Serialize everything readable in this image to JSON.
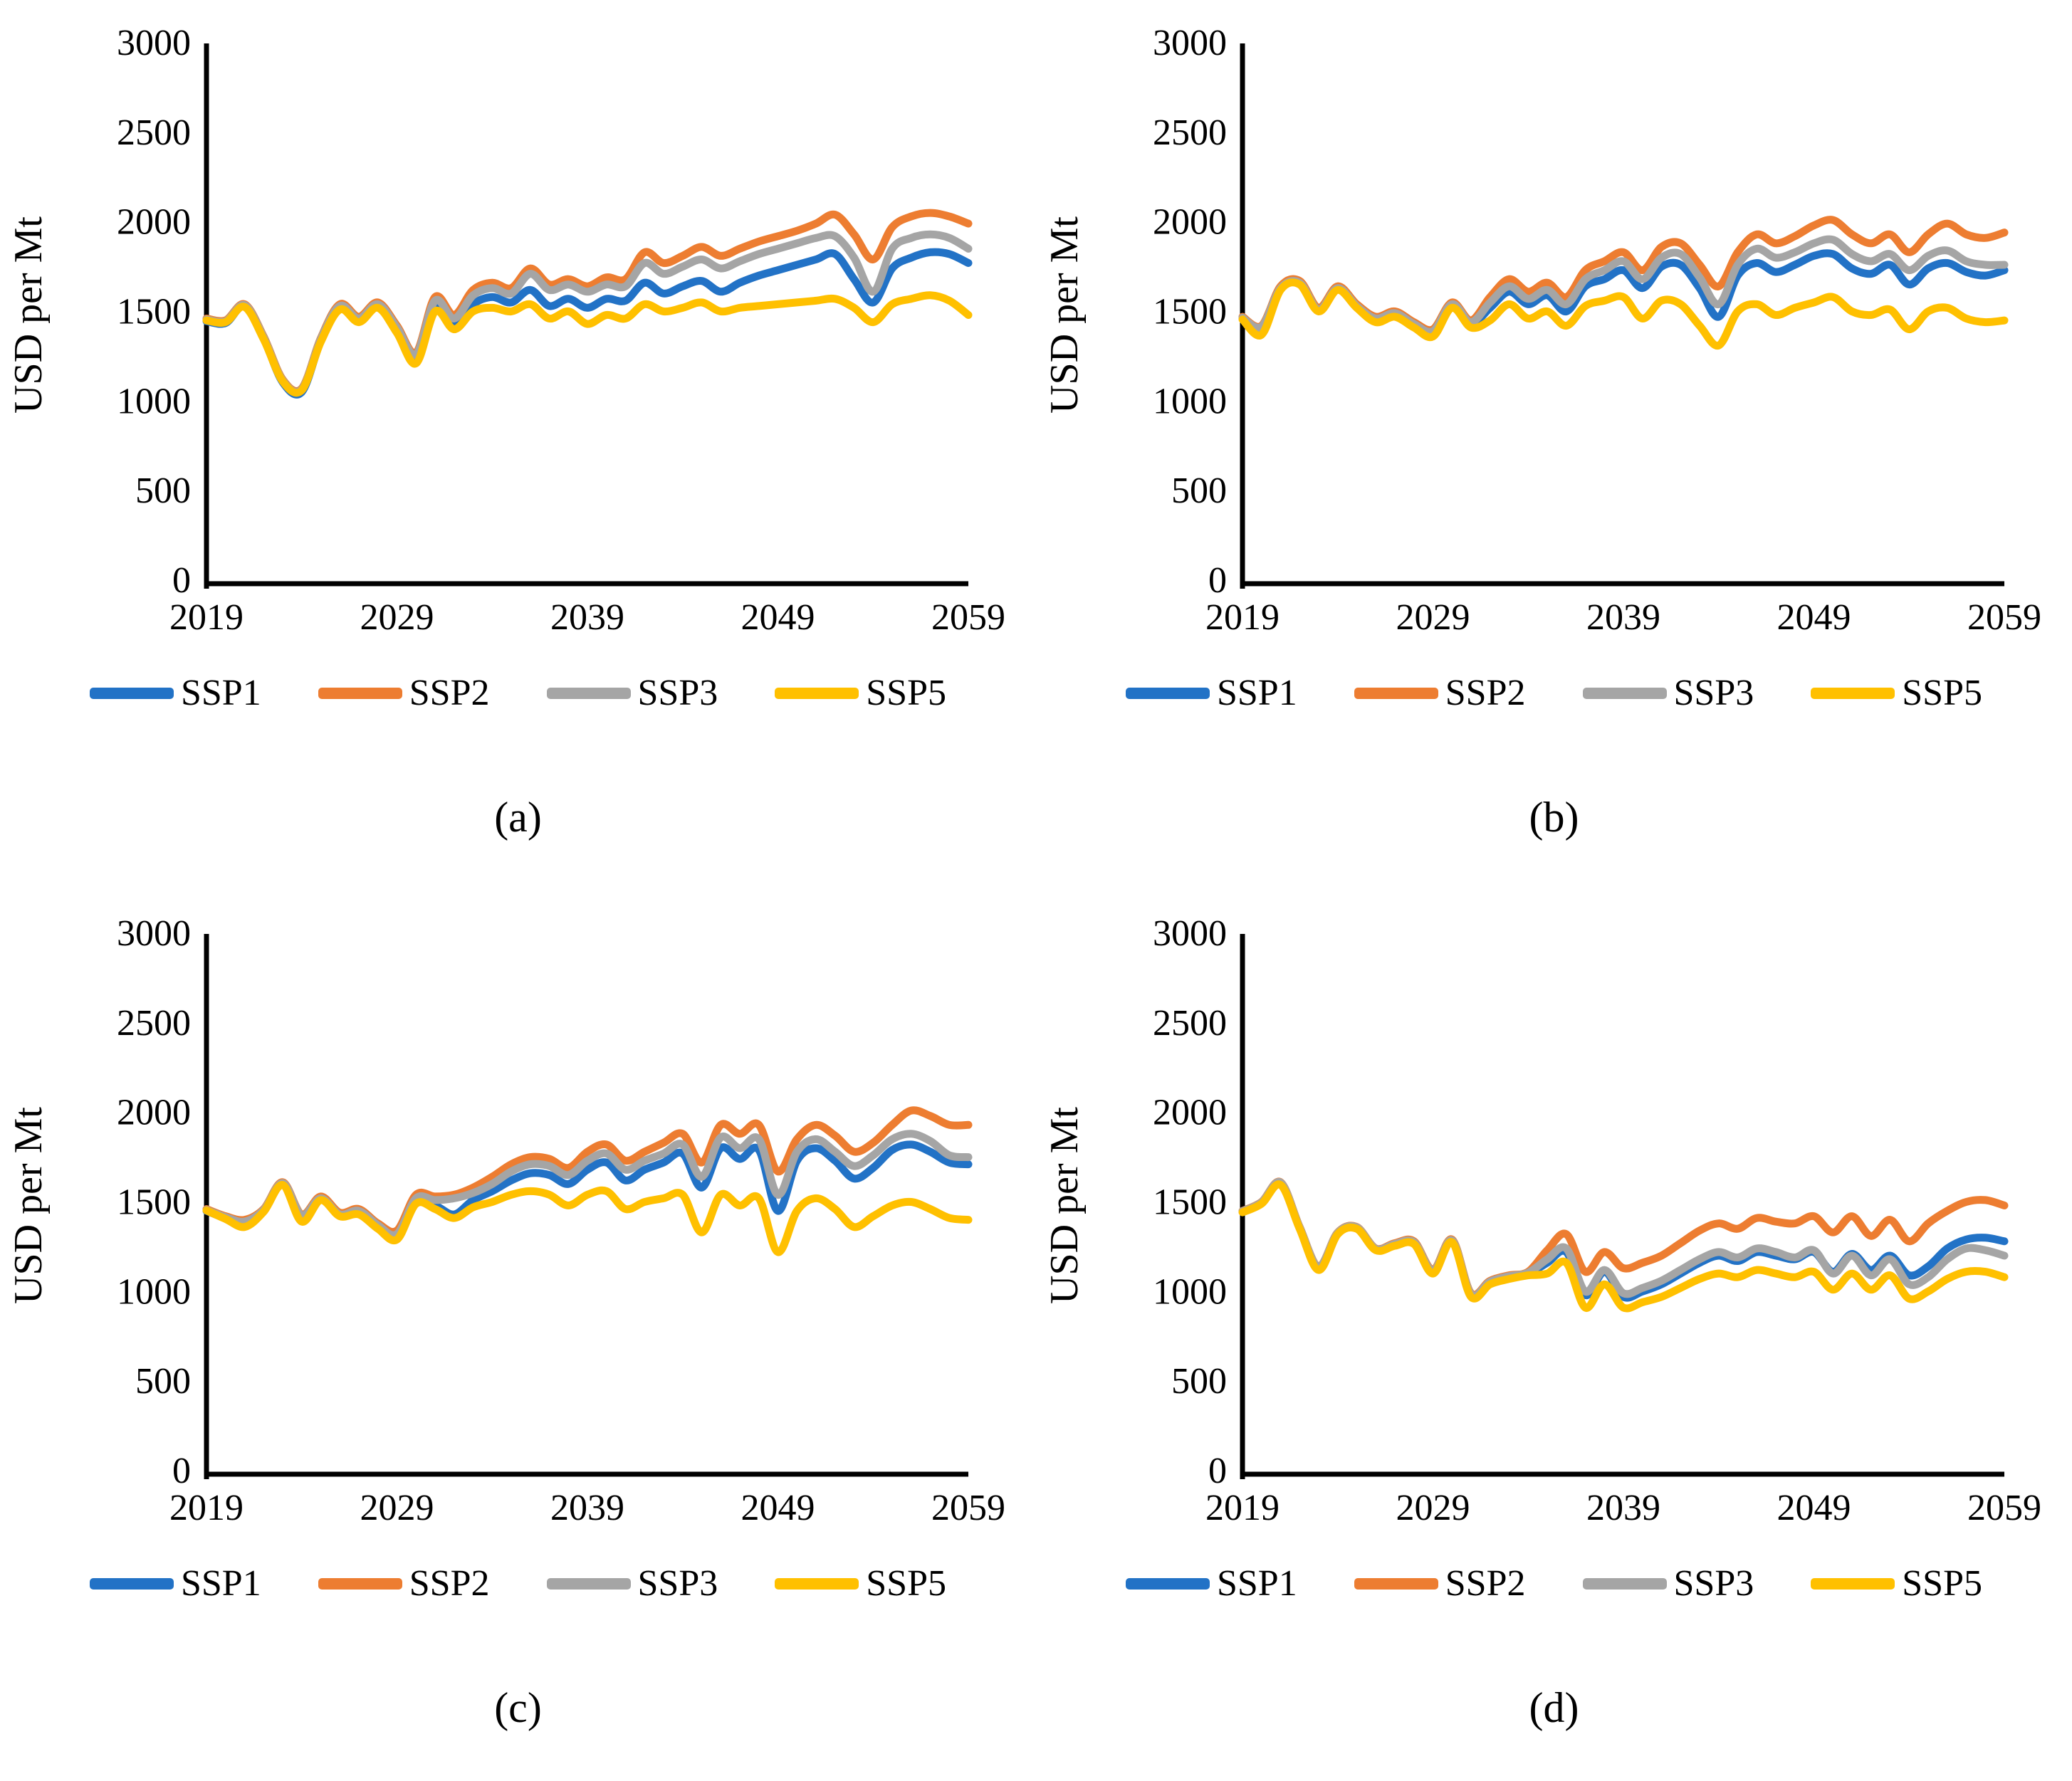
{
  "page": {
    "background": "#ffffff"
  },
  "figure": {
    "ylabel": "USD per Mt",
    "colors": {
      "SSP1": "#2272C6",
      "SSP2": "#ED7D31",
      "SSP3": "#A5A5A5",
      "SSP5": "#FFC000",
      "axis": "#000000"
    }
  },
  "chart_data": [
    {
      "id": "a",
      "panel_label": "(a)",
      "type": "line",
      "title": "",
      "xlabel": "",
      "ylabel": "USD per Mt",
      "ylim": [
        0,
        3000
      ],
      "x_start": 2019,
      "x_end": 2059,
      "x_step": 1,
      "x_ticks": [
        2019,
        2029,
        2039,
        2049,
        2059
      ],
      "y_ticks": [
        0,
        500,
        1000,
        1500,
        2000,
        2500,
        3000
      ],
      "grid": false,
      "legend_position": "bottom",
      "series": [
        {
          "name": "SSP1",
          "color": "#2272C6",
          "values": [
            1465,
            1455,
            1550,
            1370,
            1125,
            1070,
            1355,
            1540,
            1470,
            1550,
            1420,
            1250,
            1550,
            1440,
            1560,
            1600,
            1570,
            1640,
            1550,
            1590,
            1540,
            1590,
            1580,
            1680,
            1620,
            1660,
            1690,
            1630,
            1680,
            1720,
            1750,
            1780,
            1810,
            1840,
            1700,
            1570,
            1760,
            1820,
            1850,
            1840,
            1790
          ]
        },
        {
          "name": "SSP2",
          "color": "#ED7D31",
          "values": [
            1480,
            1470,
            1560,
            1380,
            1140,
            1090,
            1370,
            1560,
            1490,
            1570,
            1440,
            1290,
            1600,
            1500,
            1640,
            1680,
            1650,
            1760,
            1670,
            1700,
            1660,
            1710,
            1700,
            1850,
            1790,
            1830,
            1880,
            1830,
            1870,
            1910,
            1940,
            1970,
            2010,
            2060,
            1950,
            1810,
            1990,
            2050,
            2070,
            2050,
            2010
          ]
        },
        {
          "name": "SSP3",
          "color": "#A5A5A5",
          "values": [
            1475,
            1465,
            1555,
            1375,
            1135,
            1085,
            1365,
            1550,
            1480,
            1560,
            1430,
            1280,
            1580,
            1480,
            1610,
            1650,
            1620,
            1730,
            1640,
            1670,
            1630,
            1670,
            1660,
            1790,
            1730,
            1770,
            1810,
            1760,
            1800,
            1840,
            1870,
            1900,
            1930,
            1940,
            1820,
            1630,
            1870,
            1930,
            1950,
            1930,
            1870
          ]
        },
        {
          "name": "SSP5",
          "color": "#FFC000",
          "values": [
            1470,
            1460,
            1545,
            1365,
            1130,
            1080,
            1350,
            1530,
            1460,
            1540,
            1400,
            1230,
            1520,
            1420,
            1520,
            1540,
            1520,
            1560,
            1480,
            1520,
            1450,
            1500,
            1480,
            1560,
            1520,
            1540,
            1570,
            1520,
            1540,
            1550,
            1560,
            1570,
            1580,
            1590,
            1540,
            1460,
            1560,
            1590,
            1610,
            1580,
            1500
          ]
        }
      ]
    },
    {
      "id": "b",
      "panel_label": "(b)",
      "type": "line",
      "title": "",
      "xlabel": "",
      "ylabel": "USD per Mt",
      "ylim": [
        0,
        3000
      ],
      "x_start": 2019,
      "x_end": 2059,
      "x_step": 1,
      "x_ticks": [
        2019,
        2029,
        2039,
        2049,
        2059
      ],
      "y_ticks": [
        0,
        500,
        1000,
        1500,
        2000,
        2500,
        3000
      ],
      "grid": false,
      "legend_position": "bottom",
      "series": [
        {
          "name": "SSP1",
          "color": "#2272C6",
          "values": [
            1480,
            1430,
            1645,
            1675,
            1525,
            1645,
            1545,
            1470,
            1500,
            1440,
            1400,
            1550,
            1450,
            1540,
            1630,
            1560,
            1610,
            1520,
            1660,
            1700,
            1750,
            1650,
            1770,
            1780,
            1650,
            1490,
            1720,
            1790,
            1740,
            1780,
            1830,
            1840,
            1760,
            1730,
            1780,
            1670,
            1760,
            1790,
            1740,
            1720,
            1750
          ]
        },
        {
          "name": "SSP2",
          "color": "#ED7D31",
          "values": [
            1490,
            1440,
            1660,
            1690,
            1540,
            1660,
            1560,
            1490,
            1520,
            1460,
            1420,
            1570,
            1470,
            1600,
            1700,
            1630,
            1680,
            1600,
            1750,
            1800,
            1850,
            1750,
            1880,
            1900,
            1780,
            1660,
            1850,
            1950,
            1900,
            1940,
            2000,
            2030,
            1950,
            1900,
            1950,
            1850,
            1950,
            2010,
            1950,
            1930,
            1960
          ]
        },
        {
          "name": "SSP3",
          "color": "#A5A5A5",
          "values": [
            1485,
            1435,
            1650,
            1680,
            1530,
            1650,
            1550,
            1480,
            1510,
            1450,
            1410,
            1560,
            1460,
            1570,
            1660,
            1590,
            1640,
            1560,
            1700,
            1750,
            1800,
            1700,
            1820,
            1840,
            1710,
            1560,
            1780,
            1870,
            1820,
            1850,
            1900,
            1920,
            1840,
            1800,
            1840,
            1750,
            1830,
            1860,
            1800,
            1780,
            1780
          ]
        },
        {
          "name": "SSP5",
          "color": "#FFC000",
          "values": [
            1475,
            1390,
            1640,
            1670,
            1520,
            1640,
            1540,
            1460,
            1490,
            1430,
            1380,
            1540,
            1430,
            1470,
            1560,
            1480,
            1520,
            1440,
            1550,
            1580,
            1600,
            1480,
            1580,
            1560,
            1440,
            1330,
            1520,
            1560,
            1500,
            1540,
            1570,
            1600,
            1520,
            1500,
            1530,
            1420,
            1520,
            1540,
            1480,
            1460,
            1470
          ]
        }
      ]
    },
    {
      "id": "c",
      "panel_label": "(c)",
      "type": "line",
      "title": "",
      "xlabel": "",
      "ylabel": "USD per Mt",
      "ylim": [
        0,
        3000
      ],
      "x_start": 2019,
      "x_end": 2059,
      "x_step": 1,
      "x_ticks": [
        2019,
        2029,
        2039,
        2049,
        2059
      ],
      "y_ticks": [
        0,
        500,
        1000,
        1500,
        2000,
        2500,
        3000
      ],
      "grid": false,
      "legend_position": "bottom",
      "series": [
        {
          "name": "SSP1",
          "color": "#2272C6",
          "values": [
            1470,
            1430,
            1405,
            1470,
            1620,
            1440,
            1535,
            1445,
            1460,
            1380,
            1320,
            1520,
            1500,
            1450,
            1530,
            1580,
            1640,
            1680,
            1670,
            1620,
            1700,
            1740,
            1640,
            1700,
            1740,
            1790,
            1600,
            1820,
            1760,
            1810,
            1470,
            1750,
            1820,
            1750,
            1650,
            1710,
            1810,
            1840,
            1800,
            1740,
            1730
          ]
        },
        {
          "name": "SSP2",
          "color": "#ED7D31",
          "values": [
            1480,
            1440,
            1420,
            1480,
            1630,
            1450,
            1550,
            1460,
            1480,
            1400,
            1360,
            1560,
            1550,
            1560,
            1600,
            1660,
            1730,
            1770,
            1760,
            1710,
            1800,
            1840,
            1750,
            1800,
            1850,
            1900,
            1740,
            1950,
            1900,
            1950,
            1690,
            1870,
            1950,
            1890,
            1800,
            1850,
            1950,
            2030,
            2000,
            1950,
            1950
          ]
        },
        {
          "name": "SSP3",
          "color": "#A5A5A5",
          "values": [
            1475,
            1435,
            1410,
            1475,
            1625,
            1445,
            1540,
            1450,
            1470,
            1390,
            1340,
            1540,
            1530,
            1540,
            1570,
            1620,
            1690,
            1730,
            1720,
            1670,
            1750,
            1790,
            1700,
            1750,
            1790,
            1840,
            1660,
            1880,
            1820,
            1870,
            1560,
            1800,
            1870,
            1800,
            1720,
            1780,
            1870,
            1900,
            1860,
            1780,
            1770
          ]
        },
        {
          "name": "SSP5",
          "color": "#FFC000",
          "values": [
            1472,
            1425,
            1380,
            1465,
            1615,
            1410,
            1530,
            1440,
            1450,
            1370,
            1310,
            1510,
            1480,
            1430,
            1490,
            1520,
            1560,
            1580,
            1560,
            1500,
            1560,
            1580,
            1480,
            1520,
            1540,
            1560,
            1350,
            1560,
            1500,
            1540,
            1240,
            1470,
            1540,
            1480,
            1380,
            1440,
            1500,
            1520,
            1480,
            1430,
            1420
          ]
        }
      ]
    },
    {
      "id": "d",
      "panel_label": "(d)",
      "type": "line",
      "title": "",
      "xlabel": "",
      "ylabel": "USD per Mt",
      "ylim": [
        0,
        3000
      ],
      "x_start": 2019,
      "x_end": 2059,
      "x_step": 1,
      "x_ticks": [
        2019,
        2029,
        2039,
        2049,
        2059
      ],
      "y_ticks": [
        0,
        500,
        1000,
        1500,
        2000,
        2500,
        3000
      ],
      "grid": false,
      "legend_position": "bottom",
      "series": [
        {
          "name": "SSP1",
          "color": "#2272C6",
          "values": [
            1465,
            1515,
            1625,
            1375,
            1155,
            1345,
            1375,
            1255,
            1280,
            1290,
            1130,
            1300,
            1000,
            1070,
            1100,
            1120,
            1180,
            1240,
            1000,
            1130,
            990,
            1020,
            1060,
            1120,
            1180,
            1220,
            1190,
            1240,
            1220,
            1200,
            1240,
            1130,
            1230,
            1140,
            1220,
            1110,
            1160,
            1260,
            1310,
            1320,
            1300
          ]
        },
        {
          "name": "SSP2",
          "color": "#ED7D31",
          "values": [
            1470,
            1520,
            1630,
            1380,
            1160,
            1350,
            1380,
            1260,
            1290,
            1300,
            1140,
            1310,
            1010,
            1080,
            1110,
            1130,
            1250,
            1340,
            1130,
            1240,
            1150,
            1180,
            1220,
            1290,
            1360,
            1400,
            1370,
            1430,
            1410,
            1400,
            1440,
            1350,
            1440,
            1330,
            1420,
            1300,
            1400,
            1470,
            1520,
            1530,
            1500
          ]
        },
        {
          "name": "SSP3",
          "color": "#A5A5A5",
          "values": [
            1468,
            1518,
            1628,
            1378,
            1158,
            1348,
            1378,
            1258,
            1285,
            1295,
            1135,
            1305,
            1005,
            1075,
            1105,
            1125,
            1200,
            1260,
            1020,
            1140,
            1010,
            1040,
            1080,
            1140,
            1200,
            1240,
            1210,
            1260,
            1240,
            1210,
            1250,
            1120,
            1220,
            1110,
            1200,
            1060,
            1100,
            1200,
            1260,
            1250,
            1220
          ]
        },
        {
          "name": "SSP5",
          "color": "#FFC000",
          "values": [
            1462,
            1510,
            1615,
            1370,
            1140,
            1340,
            1370,
            1250,
            1275,
            1285,
            1120,
            1295,
            990,
            1060,
            1090,
            1110,
            1120,
            1180,
            930,
            1060,
            930,
            960,
            990,
            1040,
            1090,
            1120,
            1100,
            1140,
            1120,
            1100,
            1130,
            1030,
            1120,
            1030,
            1110,
            980,
            1020,
            1090,
            1130,
            1130,
            1100
          ]
        }
      ]
    }
  ]
}
